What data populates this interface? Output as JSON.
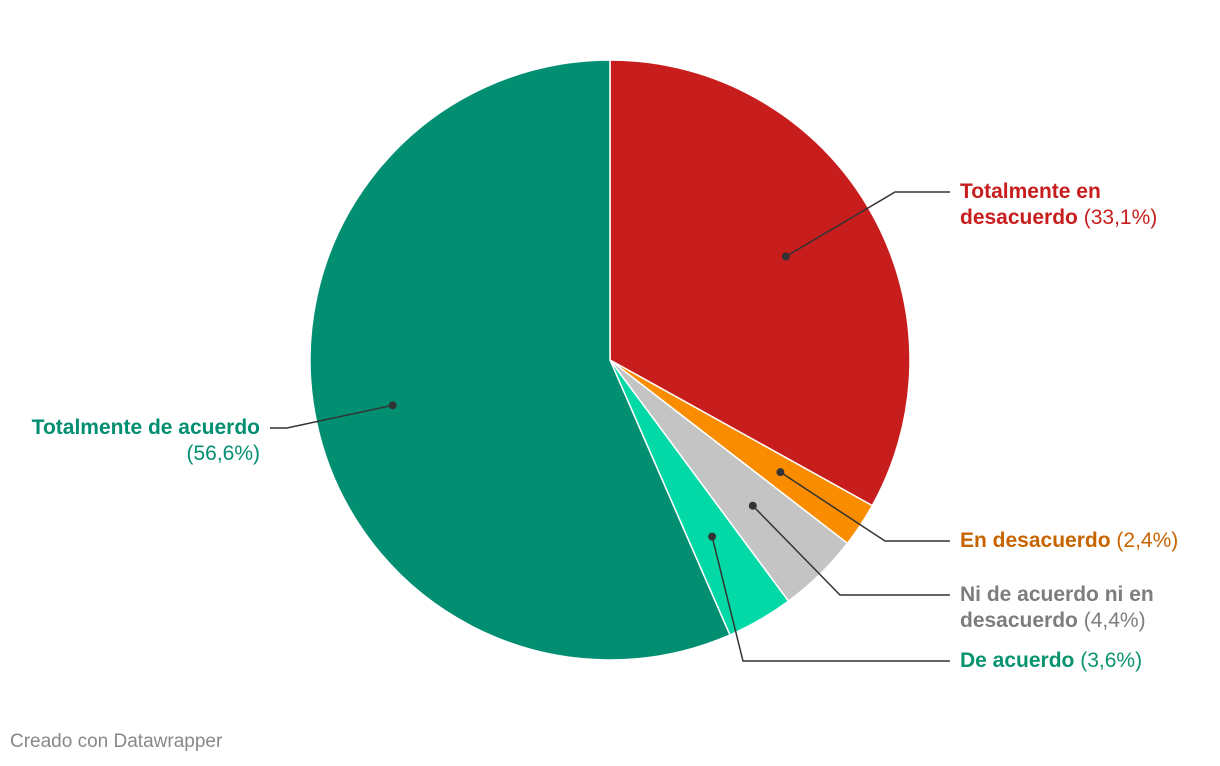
{
  "chart_data": {
    "type": "pie",
    "slices": [
      {
        "name": "Totalmente en desacuerdo",
        "name_lines": [
          "Totalmente en",
          "desacuerdo"
        ],
        "value": 33.1,
        "display": "(33,1%)",
        "color": "#c71e1d",
        "label_color": "#c71e1d"
      },
      {
        "name": "En desacuerdo",
        "name_lines": [
          "En desacuerdo"
        ],
        "value": 2.4,
        "display": "(2,4%)",
        "color": "#fa8c00",
        "label_color": "#c76400"
      },
      {
        "name": "Ni de acuerdo ni en desacuerdo",
        "name_lines": [
          "Ni de acuerdo ni en",
          "desacuerdo"
        ],
        "value": 4.4,
        "display": "(4,4%)",
        "color": "#c4c4c4",
        "label_color": "#7d7d7d"
      },
      {
        "name": "De acuerdo",
        "name_lines": [
          "De acuerdo"
        ],
        "value": 3.6,
        "display": "(3,6%)",
        "color": "#03d9a6",
        "label_color": "#09936e"
      },
      {
        "name": "Totalmente de acuerdo",
        "name_lines": [
          "Totalmente de acuerdo"
        ],
        "value": 56.6,
        "display": "(56,6%)",
        "color": "#028f71",
        "label_color": "#028f71"
      }
    ],
    "start_angle": "12 o'clock, clockwise",
    "legend": "none (direct labels)"
  },
  "footer": {
    "credit": "Creado con Datawrapper"
  }
}
